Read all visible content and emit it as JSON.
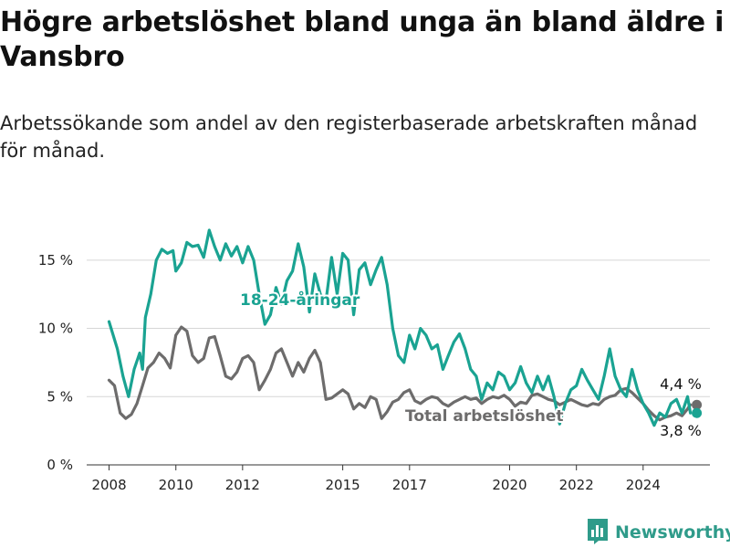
{
  "title": "Högre arbetslöshet bland unga än bland äldre i Vansbro",
  "subtitle": "Arbetssökande som andel av den registerbaserade arbetskraften månad för månad.",
  "brand": {
    "name": "Newsworthy",
    "color": "#2f9b8a",
    "icon": "bar-chart-logo-icon"
  },
  "chart_data": {
    "type": "line",
    "x_axis": {
      "type": "date",
      "range": [
        "2007-05-01",
        "2026-01-01"
      ],
      "tick_labels": [
        "2008",
        "2010",
        "2012",
        "2015",
        "2017",
        "2020",
        "2022",
        "2024"
      ],
      "tick_dates": [
        "2008-01-01",
        "2010-01-01",
        "2012-01-01",
        "2015-01-01",
        "2017-01-01",
        "2020-01-01",
        "2022-01-01",
        "2024-01-01"
      ]
    },
    "y_axis": {
      "range": [
        0,
        18
      ],
      "ticks": [
        0,
        5,
        10,
        15
      ],
      "tick_labels": [
        "0 %",
        "5 %",
        "10 %",
        "15 %"
      ],
      "grid": true
    },
    "legend": "inline labels",
    "series": [
      {
        "name": "18-24-åringar",
        "color": "#1aa392",
        "end_label": "3,8 %",
        "points": [
          [
            "2008-01-01",
            10.5
          ],
          [
            "2008-04-01",
            8.5
          ],
          [
            "2008-06-01",
            6.5
          ],
          [
            "2008-08-01",
            5.0
          ],
          [
            "2008-10-01",
            7.0
          ],
          [
            "2008-12-01",
            8.2
          ],
          [
            "2009-01-01",
            7.0
          ],
          [
            "2009-02-01",
            10.8
          ],
          [
            "2009-04-01",
            12.5
          ],
          [
            "2009-06-01",
            15.0
          ],
          [
            "2009-08-01",
            15.8
          ],
          [
            "2009-10-01",
            15.5
          ],
          [
            "2009-12-01",
            15.7
          ],
          [
            "2010-01-01",
            14.2
          ],
          [
            "2010-03-01",
            14.8
          ],
          [
            "2010-05-01",
            16.3
          ],
          [
            "2010-07-01",
            16.0
          ],
          [
            "2010-09-01",
            16.1
          ],
          [
            "2010-11-01",
            15.2
          ],
          [
            "2011-01-01",
            17.2
          ],
          [
            "2011-03-01",
            16.0
          ],
          [
            "2011-05-01",
            15.0
          ],
          [
            "2011-07-01",
            16.2
          ],
          [
            "2011-09-01",
            15.3
          ],
          [
            "2011-11-01",
            16.0
          ],
          [
            "2012-01-01",
            14.8
          ],
          [
            "2012-03-01",
            16.0
          ],
          [
            "2012-05-01",
            15.0
          ],
          [
            "2012-07-01",
            12.5
          ],
          [
            "2012-09-01",
            10.3
          ],
          [
            "2012-11-01",
            11.0
          ],
          [
            "2013-01-01",
            13.0
          ],
          [
            "2013-03-01",
            11.8
          ],
          [
            "2013-05-01",
            13.5
          ],
          [
            "2013-07-01",
            14.2
          ],
          [
            "2013-09-01",
            16.2
          ],
          [
            "2013-11-01",
            14.5
          ],
          [
            "2014-01-01",
            11.2
          ],
          [
            "2014-03-01",
            14.0
          ],
          [
            "2014-05-01",
            12.5
          ],
          [
            "2014-07-01",
            12.0
          ],
          [
            "2014-09-01",
            15.2
          ],
          [
            "2014-11-01",
            12.5
          ],
          [
            "2015-01-01",
            15.5
          ],
          [
            "2015-03-01",
            15.0
          ],
          [
            "2015-05-01",
            11.0
          ],
          [
            "2015-07-01",
            14.3
          ],
          [
            "2015-09-01",
            14.8
          ],
          [
            "2015-11-01",
            13.2
          ],
          [
            "2016-01-01",
            14.3
          ],
          [
            "2016-03-01",
            15.2
          ],
          [
            "2016-05-01",
            13.2
          ],
          [
            "2016-07-01",
            10.0
          ],
          [
            "2016-09-01",
            8.0
          ],
          [
            "2016-11-01",
            7.5
          ],
          [
            "2017-01-01",
            9.5
          ],
          [
            "2017-03-01",
            8.5
          ],
          [
            "2017-05-01",
            10.0
          ],
          [
            "2017-07-01",
            9.5
          ],
          [
            "2017-09-01",
            8.5
          ],
          [
            "2017-11-01",
            8.8
          ],
          [
            "2018-01-01",
            7.0
          ],
          [
            "2018-03-01",
            8.0
          ],
          [
            "2018-05-01",
            9.0
          ],
          [
            "2018-07-01",
            9.6
          ],
          [
            "2018-09-01",
            8.5
          ],
          [
            "2018-11-01",
            7.0
          ],
          [
            "2019-01-01",
            6.5
          ],
          [
            "2019-03-01",
            4.8
          ],
          [
            "2019-05-01",
            6.0
          ],
          [
            "2019-07-01",
            5.5
          ],
          [
            "2019-09-01",
            6.8
          ],
          [
            "2019-11-01",
            6.5
          ],
          [
            "2020-01-01",
            5.5
          ],
          [
            "2020-03-01",
            6.0
          ],
          [
            "2020-05-01",
            7.2
          ],
          [
            "2020-07-01",
            6.0
          ],
          [
            "2020-09-01",
            5.3
          ],
          [
            "2020-11-01",
            6.5
          ],
          [
            "2021-01-01",
            5.5
          ],
          [
            "2021-03-01",
            6.5
          ],
          [
            "2021-05-01",
            5.0
          ],
          [
            "2021-07-01",
            3.0
          ],
          [
            "2021-09-01",
            4.5
          ],
          [
            "2021-11-01",
            5.5
          ],
          [
            "2022-01-01",
            5.8
          ],
          [
            "2022-03-01",
            7.0
          ],
          [
            "2022-05-01",
            6.2
          ],
          [
            "2022-07-01",
            5.5
          ],
          [
            "2022-09-01",
            4.8
          ],
          [
            "2022-11-01",
            6.5
          ],
          [
            "2023-01-01",
            8.5
          ],
          [
            "2023-03-01",
            6.5
          ],
          [
            "2023-05-01",
            5.5
          ],
          [
            "2023-07-01",
            5.0
          ],
          [
            "2023-09-01",
            7.0
          ],
          [
            "2023-11-01",
            5.5
          ],
          [
            "2024-01-01",
            4.5
          ],
          [
            "2024-03-01",
            3.8
          ],
          [
            "2024-05-01",
            2.9
          ],
          [
            "2024-07-01",
            3.8
          ],
          [
            "2024-09-01",
            3.5
          ],
          [
            "2024-11-01",
            4.5
          ],
          [
            "2025-01-01",
            4.8
          ],
          [
            "2025-03-01",
            3.8
          ],
          [
            "2025-05-01",
            5.0
          ],
          [
            "2025-06-01",
            3.8
          ]
        ]
      },
      {
        "name": "Total arbetslöshet",
        "color": "#6d6c6c",
        "end_label": "4,4 %",
        "points": [
          [
            "2008-01-01",
            6.2
          ],
          [
            "2008-03-01",
            5.8
          ],
          [
            "2008-05-01",
            3.8
          ],
          [
            "2008-07-01",
            3.4
          ],
          [
            "2008-09-01",
            3.7
          ],
          [
            "2008-11-01",
            4.5
          ],
          [
            "2009-01-01",
            5.8
          ],
          [
            "2009-03-01",
            7.1
          ],
          [
            "2009-05-01",
            7.5
          ],
          [
            "2009-07-01",
            8.2
          ],
          [
            "2009-09-01",
            7.8
          ],
          [
            "2009-11-01",
            7.1
          ],
          [
            "2010-01-01",
            9.5
          ],
          [
            "2010-03-01",
            10.1
          ],
          [
            "2010-05-01",
            9.8
          ],
          [
            "2010-07-01",
            8.0
          ],
          [
            "2010-09-01",
            7.5
          ],
          [
            "2010-11-01",
            7.8
          ],
          [
            "2011-01-01",
            9.3
          ],
          [
            "2011-03-01",
            9.4
          ],
          [
            "2011-05-01",
            8.0
          ],
          [
            "2011-07-01",
            6.5
          ],
          [
            "2011-09-01",
            6.3
          ],
          [
            "2011-11-01",
            6.8
          ],
          [
            "2012-01-01",
            7.8
          ],
          [
            "2012-03-01",
            8.0
          ],
          [
            "2012-05-01",
            7.5
          ],
          [
            "2012-07-01",
            5.5
          ],
          [
            "2012-09-01",
            6.2
          ],
          [
            "2012-11-01",
            7.0
          ],
          [
            "2013-01-01",
            8.2
          ],
          [
            "2013-03-01",
            8.5
          ],
          [
            "2013-05-01",
            7.5
          ],
          [
            "2013-07-01",
            6.5
          ],
          [
            "2013-09-01",
            7.5
          ],
          [
            "2013-11-01",
            6.8
          ],
          [
            "2014-01-01",
            7.8
          ],
          [
            "2014-03-01",
            8.4
          ],
          [
            "2014-05-01",
            7.5
          ],
          [
            "2014-07-01",
            4.8
          ],
          [
            "2014-09-01",
            4.9
          ],
          [
            "2014-11-01",
            5.2
          ],
          [
            "2015-01-01",
            5.5
          ],
          [
            "2015-03-01",
            5.2
          ],
          [
            "2015-05-01",
            4.1
          ],
          [
            "2015-07-01",
            4.5
          ],
          [
            "2015-09-01",
            4.2
          ],
          [
            "2015-11-01",
            5.0
          ],
          [
            "2016-01-01",
            4.8
          ],
          [
            "2016-03-01",
            3.4
          ],
          [
            "2016-05-01",
            3.9
          ],
          [
            "2016-07-01",
            4.6
          ],
          [
            "2016-09-01",
            4.8
          ],
          [
            "2016-11-01",
            5.3
          ],
          [
            "2017-01-01",
            5.5
          ],
          [
            "2017-03-01",
            4.7
          ],
          [
            "2017-05-01",
            4.5
          ],
          [
            "2017-07-01",
            4.8
          ],
          [
            "2017-09-01",
            5.0
          ],
          [
            "2017-11-01",
            4.9
          ],
          [
            "2018-01-01",
            4.5
          ],
          [
            "2018-03-01",
            4.3
          ],
          [
            "2018-05-01",
            4.6
          ],
          [
            "2018-07-01",
            4.8
          ],
          [
            "2018-09-01",
            5.0
          ],
          [
            "2018-11-01",
            4.8
          ],
          [
            "2019-01-01",
            4.9
          ],
          [
            "2019-03-01",
            4.5
          ],
          [
            "2019-05-01",
            4.8
          ],
          [
            "2019-07-01",
            5.0
          ],
          [
            "2019-09-01",
            4.9
          ],
          [
            "2019-11-01",
            5.1
          ],
          [
            "2020-01-01",
            4.8
          ],
          [
            "2020-03-01",
            4.3
          ],
          [
            "2020-05-01",
            4.6
          ],
          [
            "2020-07-01",
            4.5
          ],
          [
            "2020-09-01",
            5.1
          ],
          [
            "2020-11-01",
            5.2
          ],
          [
            "2021-01-01",
            5.0
          ],
          [
            "2021-03-01",
            4.8
          ],
          [
            "2021-05-01",
            4.7
          ],
          [
            "2021-07-01",
            4.4
          ],
          [
            "2021-09-01",
            4.6
          ],
          [
            "2021-11-01",
            4.8
          ],
          [
            "2022-01-01",
            4.6
          ],
          [
            "2022-03-01",
            4.4
          ],
          [
            "2022-05-01",
            4.3
          ],
          [
            "2022-07-01",
            4.5
          ],
          [
            "2022-09-01",
            4.4
          ],
          [
            "2022-11-01",
            4.8
          ],
          [
            "2023-01-01",
            5.0
          ],
          [
            "2023-03-01",
            5.1
          ],
          [
            "2023-05-01",
            5.5
          ],
          [
            "2023-07-01",
            5.6
          ],
          [
            "2023-09-01",
            5.3
          ],
          [
            "2023-11-01",
            4.9
          ],
          [
            "2024-01-01",
            4.5
          ],
          [
            "2024-03-01",
            4.0
          ],
          [
            "2024-05-01",
            3.6
          ],
          [
            "2024-07-01",
            3.3
          ],
          [
            "2024-09-01",
            3.5
          ],
          [
            "2024-11-01",
            3.6
          ],
          [
            "2025-01-01",
            3.8
          ],
          [
            "2025-03-01",
            3.6
          ],
          [
            "2025-05-01",
            4.1
          ],
          [
            "2025-06-01",
            4.4
          ]
        ]
      }
    ],
    "annotations": [
      {
        "text": "18-24-åringar",
        "series": "18-24-åringar"
      },
      {
        "text": "Total arbetslöshet",
        "series": "Total arbetslöshet"
      },
      {
        "text": "4,4 %",
        "series": "Total arbetslöshet"
      },
      {
        "text": "3,8 %",
        "series": "18-24-åringar"
      }
    ]
  }
}
